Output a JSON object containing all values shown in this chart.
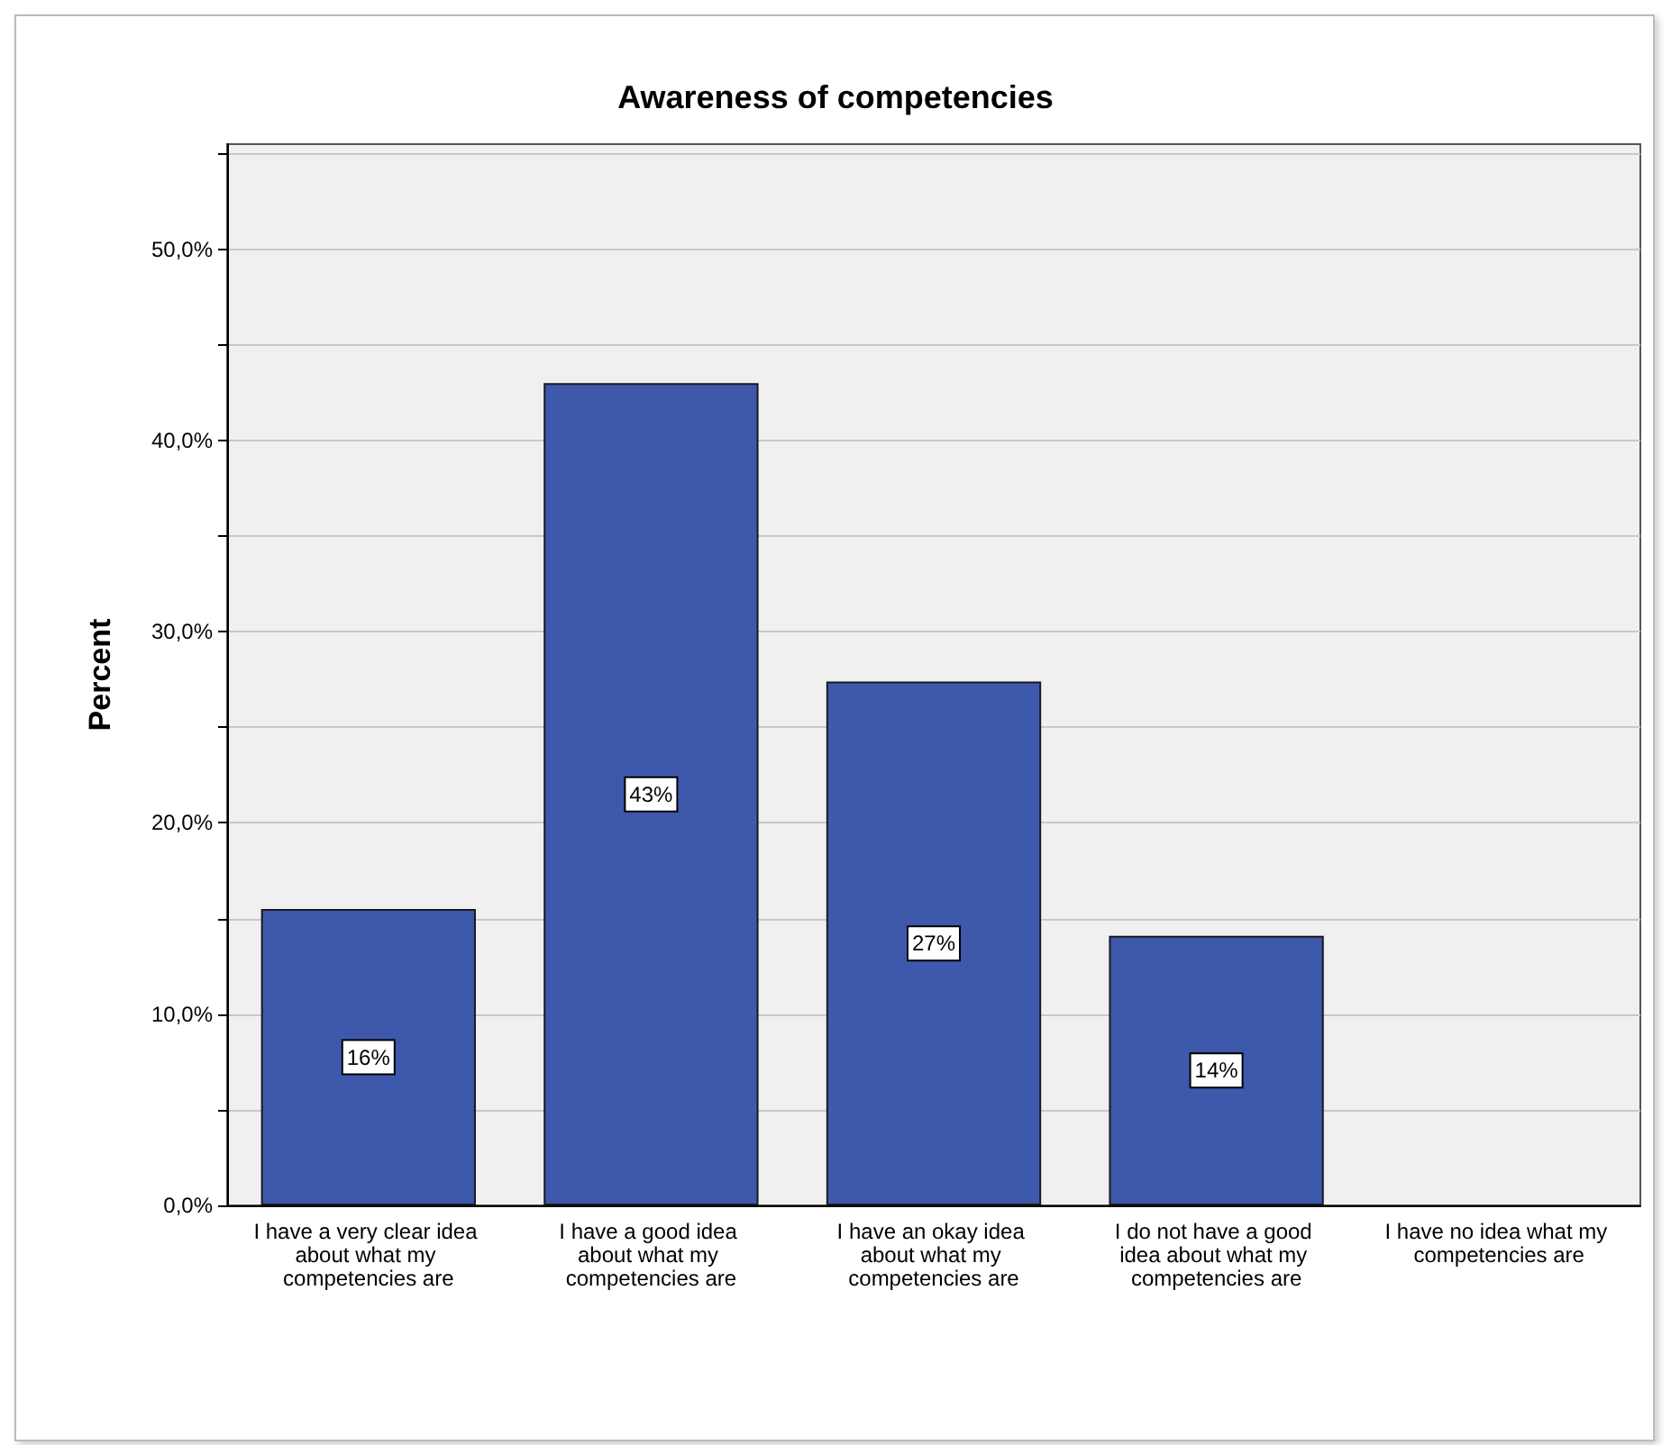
{
  "chart_data": {
    "type": "bar",
    "title": "Awareness of competencies",
    "ylabel": "Percent",
    "categories": [
      "I have a very clear idea about what my competencies are",
      "I have a good idea about what my competencies are",
      "I have an okay idea about what my competencies are",
      "I do not have a good idea about what my competencies are",
      "I have no idea what my competencies are"
    ],
    "values": [
      15.5,
      43.0,
      27.4,
      14.1,
      0
    ],
    "value_labels": [
      "16%",
      "43%",
      "27%",
      "14%",
      null
    ],
    "color": "#3e58ac",
    "ylim": [
      0,
      55.5
    ],
    "yticks": [
      {
        "value": 0,
        "label": "0,0%"
      },
      {
        "value": 5,
        "label": null
      },
      {
        "value": 10,
        "label": "10,0%"
      },
      {
        "value": 15,
        "label": null
      },
      {
        "value": 20,
        "label": "20,0%"
      },
      {
        "value": 25,
        "label": null
      },
      {
        "value": 30,
        "label": "30,0%"
      },
      {
        "value": 35,
        "label": null
      },
      {
        "value": 40,
        "label": "40,0%"
      },
      {
        "value": 45,
        "label": null
      },
      {
        "value": 50,
        "label": "50,0%"
      },
      {
        "value": 55,
        "label": null
      }
    ],
    "grid": "y"
  }
}
